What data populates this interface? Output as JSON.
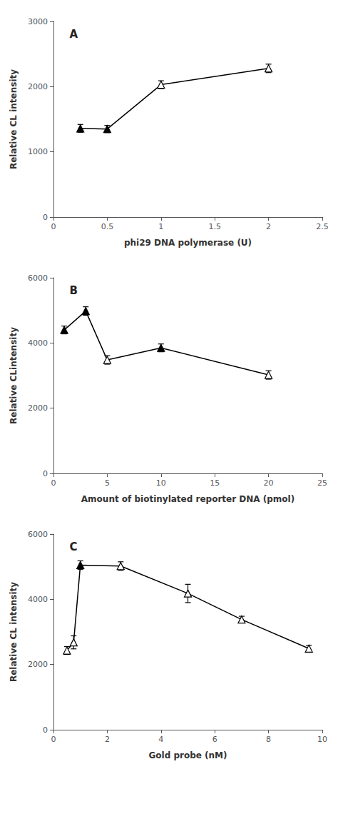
{
  "chart_data": [
    {
      "type": "line",
      "x": [
        0.25,
        0.5,
        1.0,
        2.0
      ],
      "values": [
        1360,
        1350,
        2030,
        2280
      ],
      "yerr": [
        60,
        55,
        60,
        65
      ],
      "xlabel": "phi29 DNA polymerase (U)",
      "ylabel": "Relative CL intensity",
      "xlim": [
        0,
        2.5
      ],
      "ylim": [
        0,
        3000
      ],
      "xticks": [
        0,
        0.5,
        1,
        1.5,
        2,
        2.5
      ],
      "yticks": [
        0,
        1000,
        2000,
        3000
      ],
      "annotations": [
        "A"
      ],
      "marker": "triangle",
      "color": "black",
      "colors": [
        "black",
        "black",
        "white",
        "white"
      ],
      "grid": false
    },
    {
      "type": "line",
      "x": [
        1,
        3,
        5,
        10,
        20
      ],
      "values": [
        4400,
        4980,
        3480,
        3850,
        3020
      ],
      "yerr": [
        120,
        130,
        130,
        120,
        130
      ],
      "xlabel": "Amount of biotinylated reporter DNA (pmol)",
      "ylabel": "Relative CLintensity",
      "xlim": [
        0,
        25
      ],
      "ylim": [
        0,
        6000
      ],
      "xticks": [
        0,
        5,
        10,
        15,
        20,
        25
      ],
      "yticks": [
        0,
        2000,
        4000,
        6000
      ],
      "annotations": [
        "B"
      ],
      "marker": "triangle",
      "color": "black",
      "colors": [
        "black",
        "black",
        "white",
        "black",
        "white"
      ],
      "grid": false
    },
    {
      "type": "line",
      "x": [
        0.5,
        0.75,
        1.0,
        2.5,
        5.0,
        7.0,
        9.5
      ],
      "values": [
        2430,
        2680,
        5050,
        5020,
        4180,
        3380,
        2490
      ],
      "yerr": [
        120,
        200,
        130,
        130,
        280,
        100,
        100
      ],
      "xlabel": "Gold probe (nM)",
      "ylabel": "Relative CL intensity",
      "xlim": [
        0,
        10
      ],
      "ylim": [
        0,
        6000
      ],
      "xticks": [
        0,
        2,
        4,
        6,
        8,
        10
      ],
      "yticks": [
        0,
        2000,
        4000,
        6000
      ],
      "annotations": [
        "C"
      ],
      "marker": "triangle",
      "color": "black",
      "colors": [
        "white",
        "white",
        "black",
        "white",
        "white",
        "white",
        "white"
      ],
      "grid": false
    }
  ]
}
